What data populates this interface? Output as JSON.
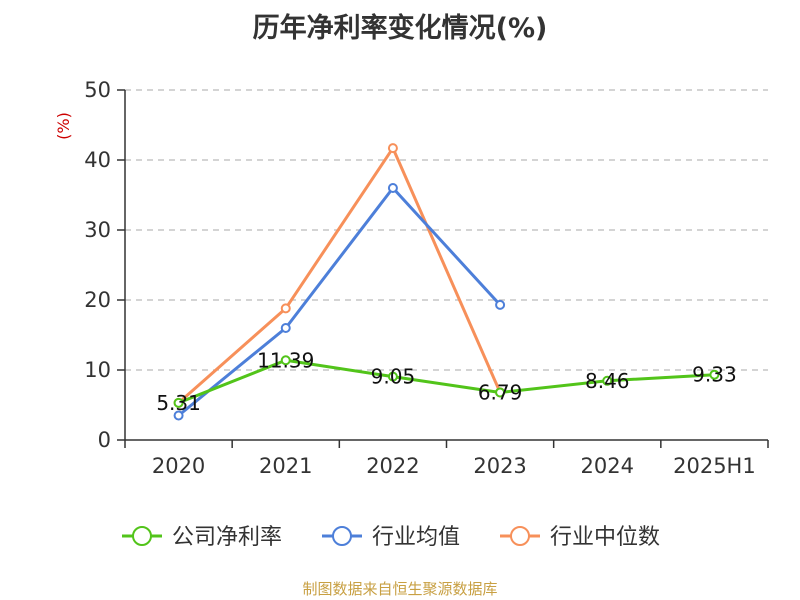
{
  "title": "历年净利率变化情况(%)",
  "source": "制图数据来自恒生聚源数据库",
  "chart_data": {
    "type": "line",
    "title": "历年净利率变化情况(%)",
    "ylabel": "(%)",
    "xlabel": "",
    "categories": [
      "2020",
      "2021",
      "2022",
      "2023",
      "2024",
      "2025H1"
    ],
    "ylim": [
      0,
      50
    ],
    "yticks": [
      0,
      10,
      20,
      30,
      40,
      50
    ],
    "grid": "horizontal-dashed",
    "legend_position": "bottom",
    "series": [
      {
        "name": "公司净利率",
        "color": "#52c41a",
        "values": [
          5.31,
          11.39,
          9.05,
          6.79,
          8.46,
          9.33
        ],
        "labels": [
          "5.31",
          "11.39",
          "9.05",
          "6.79",
          "8.46",
          "9.33"
        ]
      },
      {
        "name": "行业均值",
        "color": "#4d7fd9",
        "values": [
          3.5,
          16.0,
          36.0,
          19.3,
          null,
          null
        ]
      },
      {
        "name": "行业中位数",
        "color": "#f7905a",
        "values": [
          5.3,
          18.8,
          41.7,
          6.8,
          null,
          null
        ]
      }
    ]
  }
}
